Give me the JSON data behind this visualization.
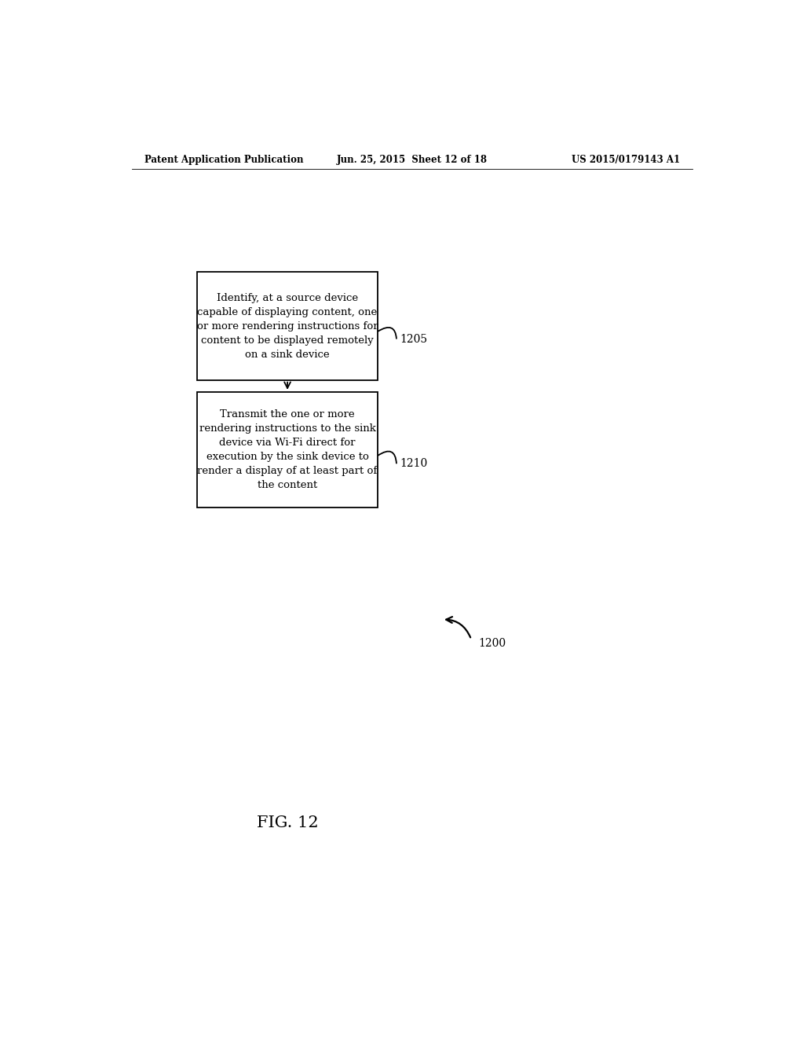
{
  "background_color": "#ffffff",
  "header_left": "Patent Application Publication",
  "header_center": "Jun. 25, 2015  Sheet 12 of 18",
  "header_right": "US 2015/0179143 A1",
  "header_fontsize": 8.5,
  "box1_text": "Identify, at a source device\ncapable of displaying content, one\nor more rendering instructions for\ncontent to be displayed remotely\non a sink device",
  "box1_label": "1205",
  "box2_text": "Transmit the one or more\nrendering instructions to the sink\ndevice via Wi-Fi direct for\nexecution by the sink device to\nrender a display of at least part of\nthe content",
  "box2_label": "1210",
  "fig_label": "FIG. 12",
  "fig_number": "1200",
  "text_fontsize": 9.5,
  "label_fontsize": 10,
  "fig_label_fontsize": 15
}
